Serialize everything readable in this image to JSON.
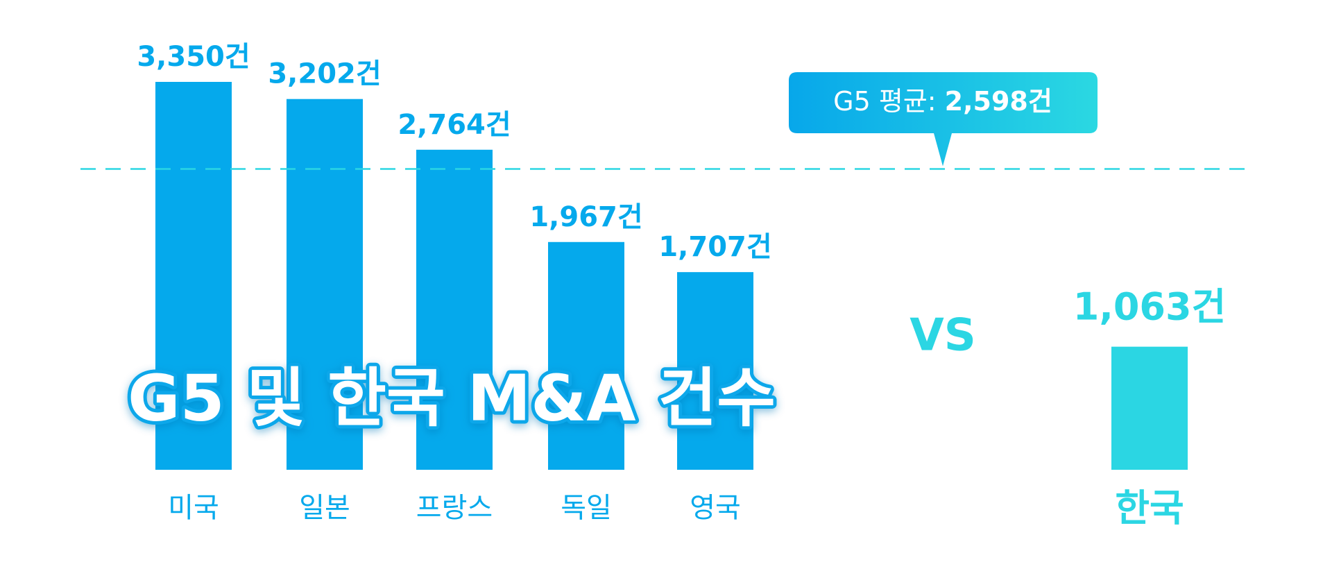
{
  "chart_data": {
    "type": "bar",
    "title": "G5 및 한국 M&A 건수",
    "categories": [
      "미국",
      "일본",
      "프랑스",
      "독일",
      "영국",
      "한국"
    ],
    "values": [
      3350,
      3202,
      2764,
      1967,
      1707,
      1063
    ],
    "value_labels": [
      "3,350건",
      "3,202건",
      "2,764건",
      "1,967건",
      "1,707건",
      "1,063건"
    ],
    "colors": [
      "#05a9ec",
      "#05a9ec",
      "#05a9ec",
      "#05a9ec",
      "#05a9ec",
      "#2bd6e3"
    ],
    "average": {
      "label": "G5 평균:",
      "value": 2598,
      "value_label": "2,598건",
      "color": "#2bd6e3"
    },
    "vs_label": "VS"
  }
}
